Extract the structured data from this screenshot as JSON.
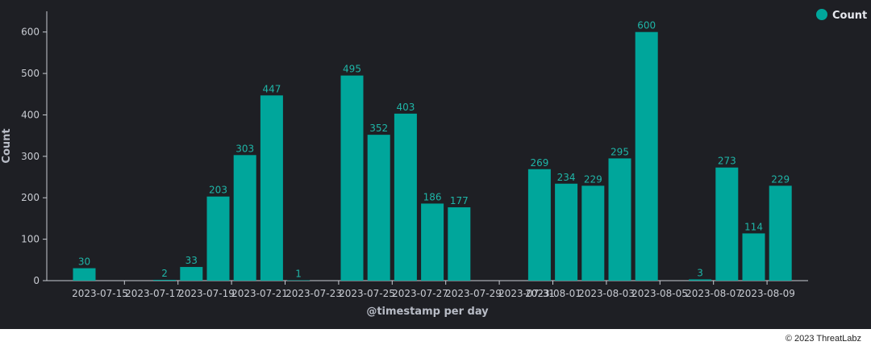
{
  "chart_data": {
    "type": "bar",
    "xlabel": "@timestamp per day",
    "ylabel": "Count",
    "ylim": [
      0,
      650
    ],
    "y_ticks": [
      0,
      100,
      200,
      300,
      400,
      500,
      600
    ],
    "x_tick_labels": [
      "2023-07-15",
      "2023-07-17",
      "2023-07-19",
      "2023-07-21",
      "2023-07-23",
      "2023-07-25",
      "2023-07-27",
      "2023-07-29",
      "2023-07-31",
      "2023-08-01",
      "2023-08-03",
      "2023-08-05",
      "2023-08-07",
      "2023-08-09"
    ],
    "categories": [
      "2023-07-14",
      "2023-07-15",
      "2023-07-16",
      "2023-07-17",
      "2023-07-18",
      "2023-07-19",
      "2023-07-20",
      "2023-07-21",
      "2023-07-22",
      "2023-07-23",
      "2023-07-24",
      "2023-07-25",
      "2023-07-26",
      "2023-07-27",
      "2023-07-28",
      "2023-07-29",
      "2023-07-30",
      "2023-07-31",
      "2023-08-01",
      "2023-08-02",
      "2023-08-03",
      "2023-08-04",
      "2023-08-05",
      "2023-08-06",
      "2023-08-07",
      "2023-08-08",
      "2023-08-09"
    ],
    "values": [
      30,
      null,
      null,
      2,
      33,
      203,
      303,
      447,
      1,
      null,
      495,
      352,
      403,
      186,
      177,
      null,
      null,
      269,
      234,
      229,
      295,
      600,
      null,
      3,
      273,
      114,
      229
    ],
    "series_name": "Count",
    "legend_position": "top-right",
    "grid": false,
    "bar_color": "#00a69b",
    "label_color": "#1fb5a7",
    "background": "#1e1f24"
  },
  "footer": {
    "copyright": "© 2023 ThreatLabz"
  }
}
